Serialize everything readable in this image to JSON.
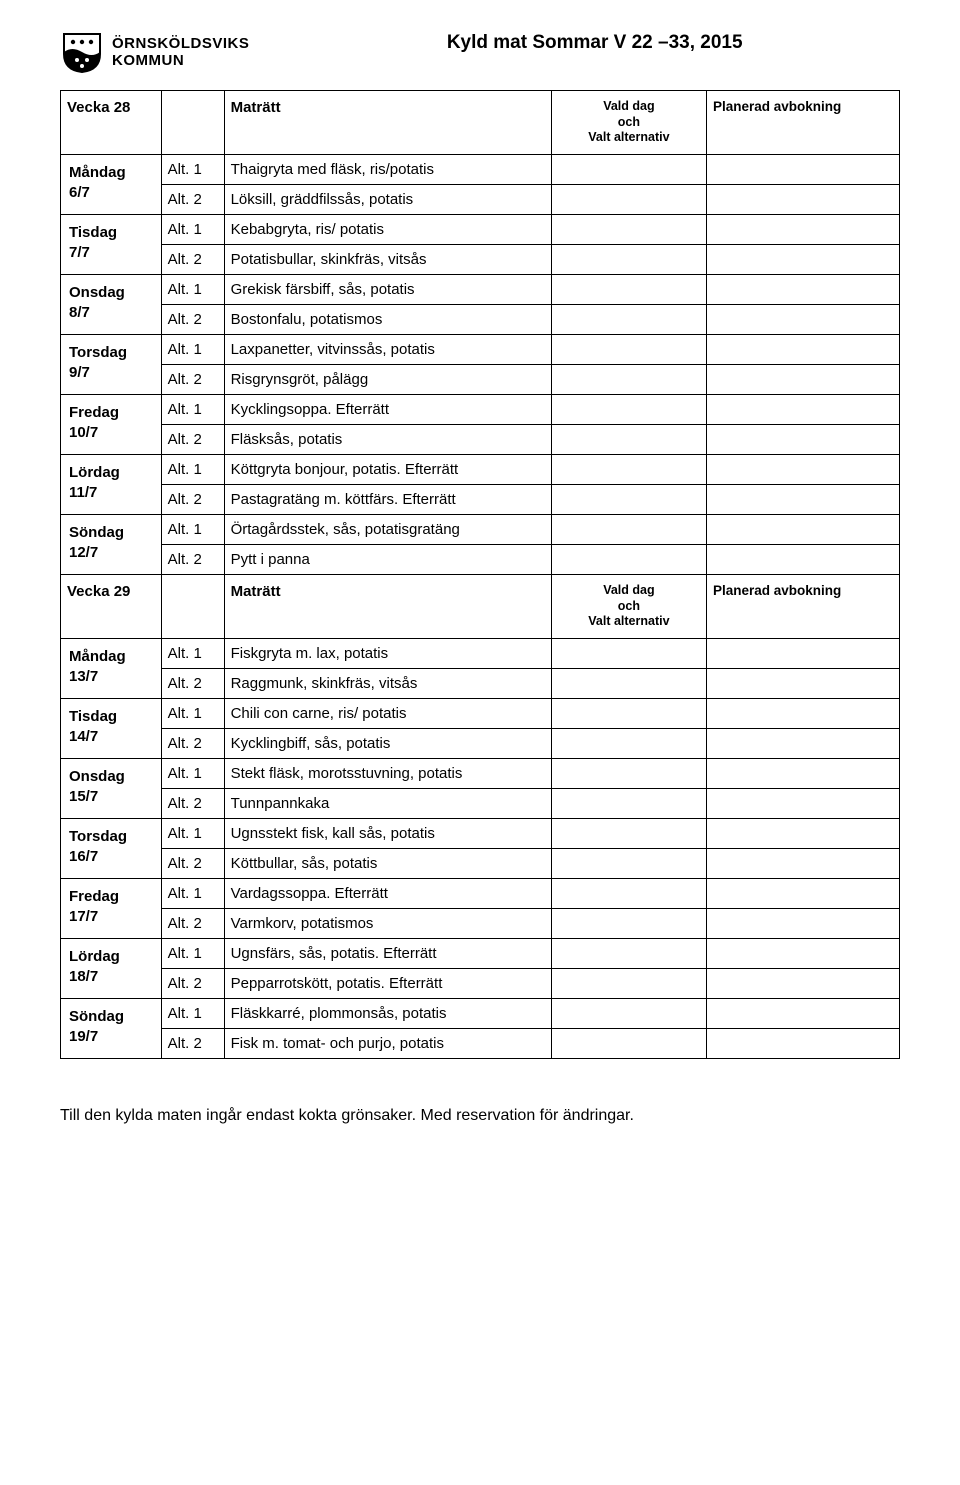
{
  "header": {
    "org_line1": "ÖRNSKÖLDSVIKS",
    "org_line2": "KOMMUN",
    "doc_title": "Kyld mat Sommar V 22 –33, 2015"
  },
  "labels": {
    "matratt": "Maträtt",
    "vald_dag": "Vald dag\noch\nValt alternativ",
    "planerad": "Planerad avbokning",
    "alt1": "Alt. 1",
    "alt2": "Alt. 2"
  },
  "weeks": [
    {
      "week_label": "Vecka 28",
      "days": [
        {
          "day_label": "Måndag\n6/7",
          "alt1": "Thaigryta med fläsk, ris/potatis",
          "alt2": "Löksill, gräddfilssås, potatis"
        },
        {
          "day_label": "Tisdag\n7/7",
          "alt1": "Kebabgryta, ris/ potatis",
          "alt2": "Potatisbullar, skinkfräs, vitsås"
        },
        {
          "day_label": "Onsdag\n8/7",
          "alt1": "Grekisk färsbiff, sås, potatis",
          "alt2": "Bostonfalu, potatismos"
        },
        {
          "day_label": "Torsdag\n9/7",
          "alt1": "Laxpanetter, vitvinssås, potatis",
          "alt2": "Risgrynsgröt, pålägg"
        },
        {
          "day_label": "Fredag\n10/7",
          "alt1": "Kycklingsoppa. Efterrätt",
          "alt2": "Fläsksås, potatis"
        },
        {
          "day_label": "Lördag\n11/7",
          "alt1": "Köttgryta bonjour, potatis. Efterrätt",
          "alt2": "Pastagratäng m. köttfärs. Efterrätt"
        },
        {
          "day_label": "Söndag\n12/7",
          "alt1": "Örtagårdsstek, sås, potatisgratäng",
          "alt2": "Pytt i panna"
        }
      ]
    },
    {
      "week_label": "Vecka 29",
      "days": [
        {
          "day_label": "Måndag\n13/7",
          "alt1": "Fiskgryta m. lax, potatis",
          "alt2": "Raggmunk, skinkfräs, vitsås"
        },
        {
          "day_label": "Tisdag\n14/7",
          "alt1": "Chili con carne, ris/ potatis",
          "alt2": "Kycklingbiff, sås, potatis"
        },
        {
          "day_label": "Onsdag\n15/7",
          "alt1": "Stekt fläsk, morotsstuvning, potatis",
          "alt2": "Tunnpannkaka"
        },
        {
          "day_label": "Torsdag\n16/7",
          "alt1": "Ugnsstekt fisk, kall sås, potatis",
          "alt2": "Köttbullar, sås, potatis"
        },
        {
          "day_label": "Fredag\n17/7",
          "alt1": "Vardagssoppa. Efterrätt",
          "alt2": "Varmkorv, potatismos"
        },
        {
          "day_label": "Lördag\n18/7",
          "alt1": "Ugnsfärs, sås, potatis. Efterrätt",
          "alt2": "Pepparrotskött, potatis. Efterrätt"
        },
        {
          "day_label": "Söndag\n19/7",
          "alt1": "Fläskkarré, plommonsås, potatis",
          "alt2": "Fisk m. tomat- och purjo, potatis"
        }
      ]
    }
  ],
  "footer": "Till den kylda maten ingår endast kokta grönsaker. Med reservation för ändringar."
}
